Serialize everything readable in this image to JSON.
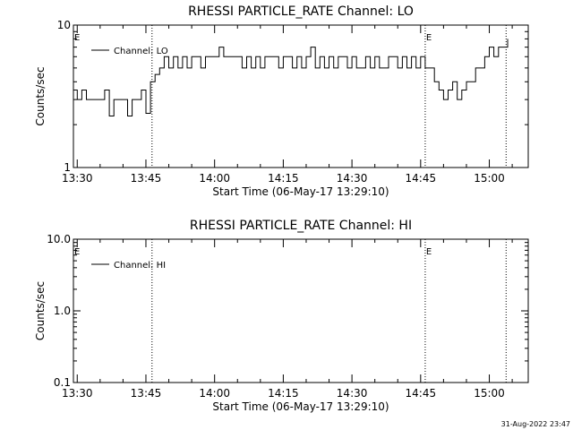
{
  "chart_data": [
    {
      "type": "line",
      "title": "RHESSI PARTICLE_RATE Channel: LO",
      "xlabel": "Start Time (06-May-17 13:29:10)",
      "ylabel": "Counts/sec",
      "yscale": "log",
      "ylim": [
        1,
        10
      ],
      "ytick_labels": [
        "1",
        "10"
      ],
      "xlim": [
        "13:29:10",
        "15:08:30"
      ],
      "xtick_labels": [
        "13:30",
        "13:45",
        "14:00",
        "14:15",
        "14:30",
        "14:45",
        "15:00"
      ],
      "legend": {
        "label": "Channel: LO",
        "placement": "top-left"
      },
      "flags": [
        {
          "label": "E",
          "time": "13:29:10"
        },
        {
          "label": "E",
          "time": "14:46:00"
        }
      ],
      "vlines": [
        "13:46:20",
        "14:46:00",
        "15:03:40"
      ],
      "series": [
        {
          "name": "Channel: LO",
          "x": [
            "13:29:10",
            "13:30:00",
            "13:31:00",
            "13:32:00",
            "13:33:00",
            "13:34:00",
            "13:35:00",
            "13:36:00",
            "13:37:00",
            "13:38:00",
            "13:39:00",
            "13:40:00",
            "13:41:00",
            "13:42:00",
            "13:43:00",
            "13:44:00",
            "13:45:00",
            "13:46:00",
            "13:47:00",
            "13:48:00",
            "13:49:00",
            "13:50:00",
            "13:51:00",
            "13:52:00",
            "13:53:00",
            "13:54:00",
            "13:55:00",
            "13:56:00",
            "13:57:00",
            "13:58:00",
            "13:59:00",
            "14:00:00",
            "14:01:00",
            "14:02:00",
            "14:03:00",
            "14:04:00",
            "14:05:00",
            "14:06:00",
            "14:07:00",
            "14:08:00",
            "14:09:00",
            "14:10:00",
            "14:11:00",
            "14:12:00",
            "14:13:00",
            "14:14:00",
            "14:15:00",
            "14:16:00",
            "14:17:00",
            "14:18:00",
            "14:19:00",
            "14:20:00",
            "14:21:00",
            "14:22:00",
            "14:23:00",
            "14:24:00",
            "14:25:00",
            "14:26:00",
            "14:27:00",
            "14:28:00",
            "14:29:00",
            "14:30:00",
            "14:31:00",
            "14:32:00",
            "14:33:00",
            "14:34:00",
            "14:35:00",
            "14:36:00",
            "14:37:00",
            "14:38:00",
            "14:39:00",
            "14:40:00",
            "14:41:00",
            "14:42:00",
            "14:43:00",
            "14:44:00",
            "14:45:00",
            "14:46:00",
            "14:47:00",
            "14:48:00",
            "14:49:00",
            "14:50:00",
            "14:51:00",
            "14:52:00",
            "14:53:00",
            "14:54:00",
            "14:55:00",
            "14:56:00",
            "14:57:00",
            "14:58:00",
            "14:59:00",
            "15:00:00",
            "15:01:00",
            "15:02:00",
            "15:03:00",
            "15:04:00"
          ],
          "y": [
            3.5,
            3.0,
            3.5,
            3.0,
            3.0,
            3.0,
            3.0,
            3.5,
            2.3,
            3.0,
            3.0,
            3.0,
            2.3,
            3.0,
            3.0,
            3.5,
            2.4,
            4.0,
            4.5,
            5.0,
            6.0,
            5.0,
            6.0,
            5.0,
            6.0,
            5.0,
            6.0,
            6.0,
            5.0,
            6.0,
            6.0,
            6.0,
            7.0,
            6.0,
            6.0,
            6.0,
            6.0,
            5.0,
            6.0,
            5.0,
            6.0,
            5.0,
            6.0,
            6.0,
            6.0,
            5.0,
            6.0,
            6.0,
            5.0,
            6.0,
            5.0,
            6.0,
            7.0,
            5.0,
            6.0,
            5.0,
            6.0,
            5.0,
            6.0,
            6.0,
            5.0,
            6.0,
            5.0,
            5.0,
            6.0,
            5.0,
            6.0,
            5.0,
            5.0,
            6.0,
            6.0,
            5.0,
            6.0,
            5.0,
            6.0,
            5.0,
            6.0,
            5.0,
            5.0,
            4.0,
            3.5,
            3.0,
            3.5,
            4.0,
            3.0,
            3.5,
            4.0,
            4.0,
            5.0,
            5.0,
            6.0,
            7.0,
            6.0,
            7.0,
            7.0,
            8.0
          ]
        }
      ]
    },
    {
      "type": "line",
      "title": "RHESSI PARTICLE_RATE Channel: HI",
      "xlabel": "Start Time (06-May-17 13:29:10)",
      "ylabel": "Counts/sec",
      "yscale": "log",
      "ylim": [
        0.1,
        10
      ],
      "ytick_labels": [
        "0.1",
        "1.0",
        "10.0"
      ],
      "xlim": [
        "13:29:10",
        "15:08:30"
      ],
      "xtick_labels": [
        "13:30",
        "13:45",
        "14:00",
        "14:15",
        "14:30",
        "14:45",
        "15:00"
      ],
      "legend": {
        "label": "Channel: HI",
        "placement": "top-left"
      },
      "flags": [
        {
          "label": "E",
          "time": "13:29:10"
        },
        {
          "label": "E",
          "time": "14:46:00"
        }
      ],
      "vlines": [
        "13:46:20",
        "14:46:00",
        "15:03:40"
      ],
      "series": [
        {
          "name": "Channel: HI",
          "x": [],
          "y": []
        }
      ]
    }
  ],
  "footer": {
    "timestamp": "31-Aug-2022 23:47"
  }
}
